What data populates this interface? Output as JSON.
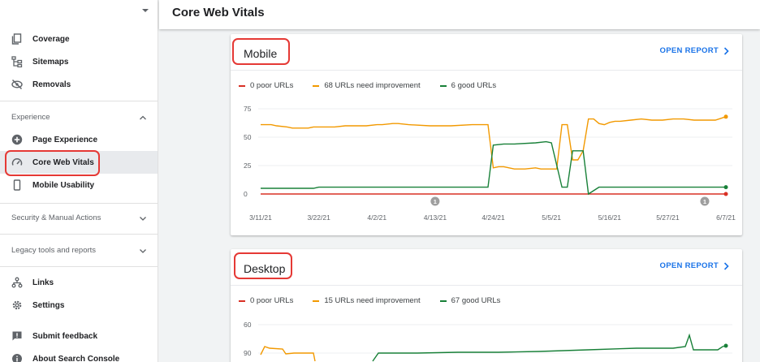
{
  "sidebar": {
    "items": [
      {
        "label": "Coverage",
        "icon": "coverage-icon"
      },
      {
        "label": "Sitemaps",
        "icon": "sitemap-icon"
      },
      {
        "label": "Removals",
        "icon": "removals-icon"
      }
    ],
    "experience_section": "Experience",
    "experience_items": [
      {
        "label": "Page Experience",
        "icon": "plus-circle-icon"
      },
      {
        "label": "Core Web Vitals",
        "icon": "speedometer-icon",
        "active": true
      },
      {
        "label": "Mobile Usability",
        "icon": "phone-icon"
      }
    ],
    "security_section": "Security & Manual Actions",
    "legacy_section": "Legacy tools and reports",
    "bottom_items": [
      {
        "label": "Links",
        "icon": "links-icon"
      },
      {
        "label": "Settings",
        "icon": "settings-icon"
      },
      {
        "label": "Submit feedback",
        "icon": "feedback-icon"
      },
      {
        "label": "About Search Console",
        "icon": "info-icon"
      }
    ]
  },
  "header": {
    "title": "Core Web Vitals"
  },
  "colors": {
    "poor": "#d93025",
    "needs_improvement": "#f29900",
    "good": "#188038",
    "link": "#1a73e8"
  },
  "mobile": {
    "title": "Mobile",
    "open_report": "OPEN REPORT",
    "legend": [
      "0 poor URLs",
      "68 URLs need improvement",
      "6 good URLs"
    ]
  },
  "desktop": {
    "title": "Desktop",
    "open_report": "OPEN REPORT",
    "legend": [
      "0 poor URLs",
      "15 URLs need improvement",
      "67 good URLs"
    ]
  },
  "chart_data": [
    {
      "type": "line",
      "title": "Mobile",
      "x_ticks": [
        "3/11/21",
        "3/22/21",
        "4/2/21",
        "4/13/21",
        "4/24/21",
        "5/5/21",
        "5/16/21",
        "5/27/21",
        "6/7/21"
      ],
      "y_ticks": [
        0,
        25,
        50,
        75
      ],
      "ylim": [
        0,
        75
      ],
      "xlim": [
        0,
        88
      ],
      "annotations": [
        {
          "x": 33,
          "label": "1"
        },
        {
          "x": 84,
          "label": "1"
        }
      ],
      "series": [
        {
          "name": "0 poor URLs",
          "color": "#d93025",
          "x": [
            0,
            88
          ],
          "y": [
            0,
            0
          ]
        },
        {
          "name": "68 URLs need improvement",
          "color": "#f29900",
          "x": [
            0,
            2,
            3,
            5,
            6,
            9,
            10,
            14,
            16,
            18,
            20,
            22,
            23,
            25,
            26,
            28,
            32,
            34,
            36,
            40,
            42,
            43,
            44,
            45,
            46,
            48,
            50,
            52,
            53,
            54,
            56,
            57,
            58,
            59,
            60,
            61,
            62,
            63,
            64,
            65,
            66,
            67,
            68,
            70,
            72,
            74,
            76,
            78,
            80,
            82,
            84,
            86,
            88
          ],
          "y": [
            61,
            61,
            60,
            59,
            58,
            58,
            59,
            59,
            60,
            60,
            60,
            61,
            61,
            62,
            62,
            61,
            60,
            60,
            60,
            61,
            61,
            61,
            23,
            24,
            24,
            22,
            22,
            23,
            22,
            22,
            22,
            61,
            61,
            30,
            30,
            38,
            66,
            66,
            62,
            61,
            63,
            64,
            64,
            65,
            66,
            65,
            65,
            66,
            66,
            65,
            65,
            65,
            68
          ]
        },
        {
          "name": "6 good URLs",
          "color": "#188038",
          "x": [
            0,
            10,
            11,
            43,
            44,
            46,
            48,
            52,
            54,
            55,
            57,
            58,
            59,
            61,
            62,
            64,
            88
          ],
          "y": [
            5,
            5,
            6,
            6,
            43,
            44,
            44,
            45,
            46,
            45,
            6,
            6,
            38,
            38,
            0,
            6,
            6
          ]
        }
      ]
    },
    {
      "type": "line",
      "title": "Desktop",
      "y_ticks": [
        60,
        90
      ],
      "series": [
        {
          "name": "15 URLs need improvement",
          "color": "#f29900"
        },
        {
          "name": "67 good URLs",
          "color": "#188038"
        }
      ]
    }
  ]
}
